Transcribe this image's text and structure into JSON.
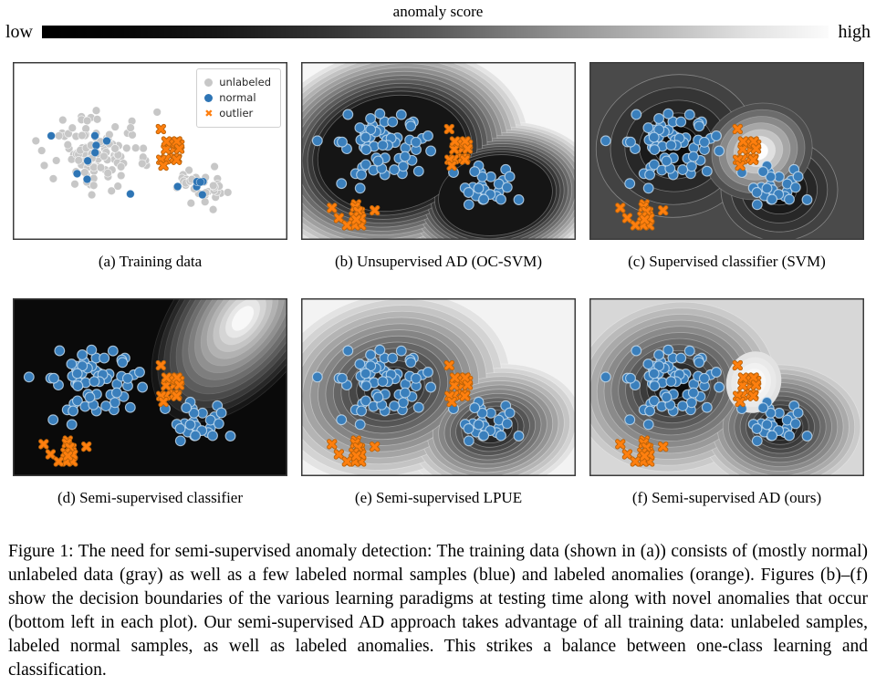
{
  "colorbar": {
    "title": "anomaly score",
    "low_label": "low",
    "high_label": "high"
  },
  "legend": {
    "items": [
      {
        "label": "unlabeled",
        "marker": "circle",
        "color": "#c7c7c7"
      },
      {
        "label": "normal",
        "marker": "circle",
        "color": "#2e75b5"
      },
      {
        "label": "outlier",
        "marker": "x",
        "color": "#ff7f0e"
      }
    ]
  },
  "panels": [
    {
      "id": "a",
      "caption": "(a) Training data"
    },
    {
      "id": "b",
      "caption": "(b) Unsupervised AD (OC-SVM)"
    },
    {
      "id": "c",
      "caption": "(c) Supervised classifier (SVM)"
    },
    {
      "id": "d",
      "caption": "(d) Semi-supervised classifier"
    },
    {
      "id": "e",
      "caption": "(e) Semi-supervised LPUE"
    },
    {
      "id": "f",
      "caption": "(f) Semi-supervised AD (ours)"
    }
  ],
  "figure_caption": "Figure 1: The need for semi-supervised anomaly detection: The training data (shown in (a)) consists of (mostly normal) unlabeled data (gray) as well as a few labeled normal samples (blue) and labeled anomalies (orange). Figures (b)–(f) show the decision boundaries of the various learning paradigms at testing time along with novel anomalies that occur (bottom left in each plot). Our semi-supervised AD approach takes advantage of all training data: unlabeled samples, labeled normal samples, as well as labeled anomalies. This strikes a balance between one-class learning and classification.",
  "chart_data": {
    "type": "scatter",
    "title": "anomaly score colorbar from low (black) to high (white)",
    "panel_size": [
      301,
      195
    ],
    "colors": {
      "unlabeled": "#c7c7c7",
      "normal": "#2e75b5",
      "normal_test": "#3a7fbc",
      "outlier": "#ff7f0e",
      "border": "#3b3b3b"
    },
    "clusters": {
      "normal_left": {
        "center": [
          88,
          95
        ],
        "std": [
          27,
          21
        ]
      },
      "normal_right": {
        "center": [
          206,
          138
        ],
        "std": [
          15,
          11
        ]
      },
      "outlier_train": {
        "center": [
          171,
          95
        ],
        "std": [
          6.5,
          9
        ]
      },
      "novel_groups": [
        {
          "center": [
            34,
            160
          ],
          "std": [
            0.5,
            0.5
          ],
          "count": 1
        },
        {
          "center": [
            42,
            171
          ],
          "std": [
            0.5,
            0.5
          ],
          "count": 1
        },
        {
          "center": [
            62,
            166
          ],
          "std": [
            4.5,
            5.0
          ],
          "count": 11
        },
        {
          "center": [
            81,
            163
          ],
          "std": [
            0.5,
            0.5
          ],
          "count": 1
        }
      ],
      "counts": {
        "unlabeled_left": 115,
        "unlabeled_right": 40,
        "labeled_left": 9,
        "labeled_right": 6,
        "test_left": 64,
        "test_right": 29,
        "outlier": 17
      }
    },
    "fields": [
      {
        "id": "a",
        "bg": "#ffffff",
        "series": [
          "unlabeled",
          "labeled",
          "outlier"
        ],
        "layers": []
      },
      {
        "id": "b",
        "bg": "#f7f7f7",
        "series": [
          "test",
          "outlier",
          "novel"
        ],
        "layers": [
          {
            "levels": 13,
            "outer": "#e4e4e4",
            "inner": "#151515",
            "stroke": "rgba(255,255,255,0.30)",
            "blobs": [
              {
                "cx": 100,
                "cy": 100,
                "rx": 150,
                "ry": 114,
                "rot": -12,
                "is": 0.55
              },
              {
                "cx": 213,
                "cy": 146,
                "rx": 114,
                "ry": 80,
                "rot": -8,
                "is": 0.55
              }
            ]
          }
        ]
      },
      {
        "id": "c",
        "bg": "#4a4a4a",
        "series": [
          "test",
          "outlier",
          "novel"
        ],
        "layers": [
          {
            "levels": 5,
            "outer": "#424242",
            "inner": "#0c0c0c",
            "stroke": "rgba(255,255,255,0.35)",
            "blobs": [
              {
                "cx": 95,
                "cy": 92,
                "rx": 88,
                "ry": 78,
                "rot": -10,
                "is": 0.28
              },
              {
                "cx": 208,
                "cy": 140,
                "rx": 64,
                "ry": 56,
                "rot": 0,
                "is": 0.3
              }
            ]
          },
          {
            "levels": 7,
            "outer": "#4f4f4f",
            "inner": "#fdfdfd",
            "stroke": "rgba(255,255,255,0.25)",
            "blobs": [
              {
                "cx": 185,
                "cy": 98,
                "rx": 60,
                "ry": 52,
                "rot": -20,
                "is": 0.18
              }
            ]
          }
        ]
      },
      {
        "id": "d",
        "bg": "#0a0a0a",
        "series": [
          "test",
          "outlier",
          "novel"
        ],
        "layers": [
          {
            "levels": 14,
            "outer": "#161616",
            "inner": "#f8f8f8",
            "stroke": "rgba(255,255,255,0.12)",
            "blobs": [
              {
                "cx": 252,
                "cy": 22,
                "rx": 132,
                "ry": 74,
                "rot": -52,
                "is": 0.12
              }
            ]
          }
        ]
      },
      {
        "id": "e",
        "bg": "#f3f3f3",
        "series": [
          "test",
          "outlier",
          "novel"
        ],
        "layers": [
          {
            "levels": 13,
            "outer": "#e3e3e3",
            "inner": "#262626",
            "stroke": "rgba(255,255,255,0.35)",
            "blobs": [
              {
                "cx": 98,
                "cy": 98,
                "rx": 132,
                "ry": 102,
                "rot": -14,
                "is": 0.22
              },
              {
                "cx": 210,
                "cy": 143,
                "rx": 98,
                "ry": 70,
                "rot": -10,
                "is": 0.22
              }
            ]
          }
        ]
      },
      {
        "id": "f",
        "bg": "#d7d7d7",
        "series": [
          "test",
          "outlier",
          "novel"
        ],
        "layers": [
          {
            "levels": 13,
            "outer": "#cacaca",
            "inner": "#0b0b0b",
            "stroke": "rgba(255,255,255,0.30)",
            "blobs": [
              {
                "cx": 94,
                "cy": 97,
                "rx": 110,
                "ry": 92,
                "rot": -12,
                "is": 0.14
              },
              {
                "cx": 209,
                "cy": 141,
                "rx": 88,
                "ry": 68,
                "rot": 0,
                "is": 0.14
              }
            ]
          },
          {
            "levels": 5,
            "outer": "#e2e2e2",
            "inner": "#ffffff",
            "stroke": "none",
            "blobs": [
              {
                "cx": 180,
                "cy": 92,
                "rx": 30,
                "ry": 34,
                "rot": 15,
                "is": 0.25
              }
            ]
          }
        ]
      }
    ]
  }
}
